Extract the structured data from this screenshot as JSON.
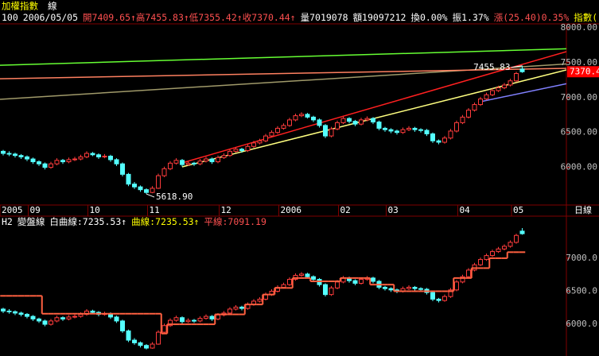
{
  "header": {
    "title": "加權指數",
    "mode": "線",
    "items": [
      {
        "text": "100",
        "color": "#ffffff"
      },
      {
        "text": "2006/05/05",
        "color": "#ffffff"
      },
      {
        "text": "開7409.65↑高7455.83↑低7355.42↑收7370.44↑",
        "color": "#ff5050"
      },
      {
        "text": "量7019078",
        "color": "#ffffff"
      },
      {
        "text": "額19097212",
        "color": "#ffffff"
      },
      {
        "text": "換0.00%",
        "color": "#ffffff"
      },
      {
        "text": "振1.37%",
        "color": "#ffffff"
      },
      {
        "text": "漲(25.40)0.35%",
        "color": "#ff5050"
      },
      {
        "text": "指數(",
        "color": "#ffff00"
      }
    ]
  },
  "chart_data": {
    "type": "candlestick",
    "up_color": "#ff3c3c",
    "down_color": "#54ffff",
    "candles": [
      [
        6230,
        6250,
        6170,
        6200
      ],
      [
        6200,
        6230,
        6160,
        6190
      ],
      [
        6190,
        6210,
        6140,
        6170
      ],
      [
        6170,
        6190,
        6120,
        6150
      ],
      [
        6150,
        6170,
        6090,
        6120
      ],
      [
        6120,
        6140,
        6050,
        6080
      ],
      [
        6080,
        6100,
        6020,
        6050
      ],
      [
        6050,
        6070,
        5970,
        6000
      ],
      [
        6000,
        6080,
        5980,
        6050
      ],
      [
        6050,
        6130,
        6030,
        6100
      ],
      [
        6100,
        6120,
        6050,
        6080
      ],
      [
        6080,
        6140,
        6060,
        6110
      ],
      [
        6110,
        6150,
        6090,
        6120
      ],
      [
        6120,
        6180,
        6100,
        6150
      ],
      [
        6150,
        6230,
        6130,
        6200
      ],
      [
        6200,
        6220,
        6160,
        6180
      ],
      [
        6180,
        6200,
        6120,
        6150
      ],
      [
        6150,
        6190,
        6130,
        6160
      ],
      [
        6160,
        6180,
        6080,
        6110
      ],
      [
        6110,
        6130,
        6020,
        6050
      ],
      [
        6050,
        6070,
        5870,
        5900
      ],
      [
        5900,
        5920,
        5730,
        5760
      ],
      [
        5760,
        5790,
        5690,
        5720
      ],
      [
        5720,
        5740,
        5650,
        5680
      ],
      [
        5680,
        5700,
        5618.9,
        5640
      ],
      [
        5640,
        5730,
        5630,
        5700
      ],
      [
        5700,
        5910,
        5690,
        5880
      ],
      [
        5880,
        6010,
        5860,
        5980
      ],
      [
        5980,
        6090,
        5960,
        6060
      ],
      [
        6060,
        6130,
        6040,
        6100
      ],
      [
        6100,
        6120,
        6010,
        6040
      ],
      [
        6040,
        6090,
        6020,
        6060
      ],
      [
        6060,
        6080,
        6020,
        6050
      ],
      [
        6050,
        6120,
        6030,
        6090
      ],
      [
        6090,
        6150,
        6070,
        6120
      ],
      [
        6120,
        6140,
        6050,
        6080
      ],
      [
        6080,
        6170,
        6060,
        6140
      ],
      [
        6140,
        6200,
        6120,
        6170
      ],
      [
        6170,
        6260,
        6150,
        6230
      ],
      [
        6230,
        6290,
        6210,
        6260
      ],
      [
        6260,
        6280,
        6210,
        6240
      ],
      [
        6240,
        6330,
        6220,
        6300
      ],
      [
        6300,
        6380,
        6280,
        6350
      ],
      [
        6350,
        6410,
        6330,
        6380
      ],
      [
        6380,
        6480,
        6360,
        6450
      ],
      [
        6450,
        6530,
        6430,
        6500
      ],
      [
        6500,
        6590,
        6480,
        6560
      ],
      [
        6560,
        6630,
        6540,
        6600
      ],
      [
        6600,
        6710,
        6580,
        6680
      ],
      [
        6680,
        6770,
        6660,
        6740
      ],
      [
        6740,
        6790,
        6720,
        6760
      ],
      [
        6760,
        6780,
        6700,
        6720
      ],
      [
        6720,
        6740,
        6650,
        6680
      ],
      [
        6680,
        6700,
        6570,
        6600
      ],
      [
        6600,
        6620,
        6420,
        6450
      ],
      [
        6450,
        6580,
        6430,
        6550
      ],
      [
        6550,
        6670,
        6530,
        6640
      ],
      [
        6640,
        6730,
        6620,
        6700
      ],
      [
        6700,
        6720,
        6630,
        6660
      ],
      [
        6660,
        6680,
        6590,
        6620
      ],
      [
        6620,
        6710,
        6600,
        6680
      ],
      [
        6680,
        6730,
        6660,
        6700
      ],
      [
        6700,
        6720,
        6620,
        6650
      ],
      [
        6650,
        6670,
        6530,
        6560
      ],
      [
        6560,
        6580,
        6510,
        6540
      ],
      [
        6540,
        6560,
        6490,
        6520
      ],
      [
        6520,
        6540,
        6470,
        6500
      ],
      [
        6500,
        6570,
        6480,
        6540
      ],
      [
        6540,
        6590,
        6520,
        6560
      ],
      [
        6560,
        6580,
        6510,
        6540
      ],
      [
        6540,
        6560,
        6500,
        6530
      ],
      [
        6530,
        6550,
        6450,
        6480
      ],
      [
        6480,
        6500,
        6350,
        6380
      ],
      [
        6380,
        6400,
        6330,
        6360
      ],
      [
        6360,
        6450,
        6340,
        6420
      ],
      [
        6420,
        6550,
        6400,
        6520
      ],
      [
        6520,
        6670,
        6500,
        6640
      ],
      [
        6640,
        6750,
        6620,
        6720
      ],
      [
        6720,
        6850,
        6700,
        6820
      ],
      [
        6820,
        6930,
        6800,
        6900
      ],
      [
        6900,
        7010,
        6880,
        6980
      ],
      [
        6980,
        7070,
        6960,
        7040
      ],
      [
        7040,
        7130,
        7020,
        7100
      ],
      [
        7100,
        7170,
        7080,
        7140
      ],
      [
        7140,
        7210,
        7120,
        7180
      ],
      [
        7180,
        7270,
        7160,
        7240
      ],
      [
        7240,
        7370,
        7220,
        7345
      ],
      [
        7409.65,
        7455.83,
        7355.42,
        7370.44
      ]
    ],
    "date_labels": [
      {
        "label": "2005",
        "index": 0
      },
      {
        "label": "09",
        "index": 5
      },
      {
        "label": "10",
        "index": 15
      },
      {
        "label": "11",
        "index": 25
      },
      {
        "label": "12",
        "index": 37
      },
      {
        "label": "2006",
        "index": 47
      },
      {
        "label": "02",
        "index": 57
      },
      {
        "label": "03",
        "index": 65
      },
      {
        "label": "04",
        "index": 77
      },
      {
        "label": "05",
        "index": 86
      }
    ],
    "period": "日線",
    "top": {
      "ylim": [
        5460,
        8057
      ],
      "yticks": [
        {
          "value": 8000,
          "label": "8000.00"
        },
        {
          "value": 7500,
          "label": "7500.00"
        },
        {
          "value": 7000,
          "label": "7000.00"
        },
        {
          "value": 6500,
          "label": "6500.00"
        },
        {
          "value": 6000,
          "label": "6000.00"
        }
      ],
      "trendlines": [
        {
          "color": "#66ff33",
          "x": [
            0,
            87
          ],
          "values": [
            7465,
            7681
          ],
          "extend": "both"
        },
        {
          "color": "#a09a6a",
          "x": [
            0,
            87
          ],
          "values": [
            6978,
            7442
          ],
          "extend": "both"
        },
        {
          "color": "#ff8060",
          "x": [
            0,
            87
          ],
          "values": [
            7271,
            7408
          ],
          "extend": "both"
        },
        {
          "color": "#ff2020",
          "x": [
            30,
            87
          ],
          "values": [
            6064,
            7476
          ],
          "extend": "right"
        },
        {
          "color": "#ffff80",
          "x": [
            30,
            87
          ],
          "values": [
            6007,
            7237
          ],
          "extend": "right"
        },
        {
          "color": "#8080ff",
          "x": [
            80,
            87
          ],
          "values": [
            6941,
            7066
          ],
          "extend": "right"
        }
      ],
      "annotations": [
        {
          "label": "7455.83",
          "value": 7455.83,
          "index": 87,
          "side": "left"
        },
        {
          "label": "5618.90",
          "value": 5618.9,
          "index": 24,
          "side": "right"
        }
      ],
      "last_price": {
        "value": 7370.44,
        "label": "7370.4",
        "color": "#ff0000"
      }
    },
    "bottom": {
      "items": [
        {
          "text": "H2",
          "color": "#ffffff"
        },
        {
          "text": "變盤線",
          "color": "#ffffff"
        },
        {
          "text": "白曲線:7235.53↑",
          "color": "#ffffff"
        },
        {
          "text": "曲線:7235.53↑",
          "color": "#ffff00"
        },
        {
          "text": "平線:7091.19",
          "color": "#ff5050"
        }
      ],
      "ylim": [
        5520,
        7480
      ],
      "yticks": [
        {
          "value": 7000,
          "label": "7000.0"
        },
        {
          "value": 6500,
          "label": "6500.0"
        },
        {
          "value": 6000,
          "label": "6000.0"
        }
      ],
      "flat_line": {
        "color": "#ff6040",
        "values": [
          6430,
          6430,
          6430,
          6430,
          6430,
          6430,
          6430,
          6160,
          6160,
          6160,
          6160,
          6160,
          6160,
          6160,
          6160,
          6160,
          6160,
          6160,
          6160,
          6160,
          6160,
          6160,
          6160,
          6160,
          6160,
          6160,
          6160,
          5860,
          6000,
          6000,
          6000,
          6000,
          6000,
          6000,
          6000,
          6000,
          6150,
          6150,
          6150,
          6150,
          6150,
          6300,
          6300,
          6300,
          6450,
          6450,
          6550,
          6550,
          6550,
          6700,
          6700,
          6700,
          6650,
          6650,
          6650,
          6650,
          6650,
          6700,
          6700,
          6700,
          6700,
          6700,
          6600,
          6600,
          6600,
          6600,
          6500,
          6500,
          6500,
          6500,
          6500,
          6500,
          6500,
          6500,
          6500,
          6500,
          6700,
          6700,
          6700,
          6850,
          6850,
          6850,
          7000,
          7000,
          7000,
          7091.19,
          7091.19,
          7091.19
        ]
      }
    }
  }
}
